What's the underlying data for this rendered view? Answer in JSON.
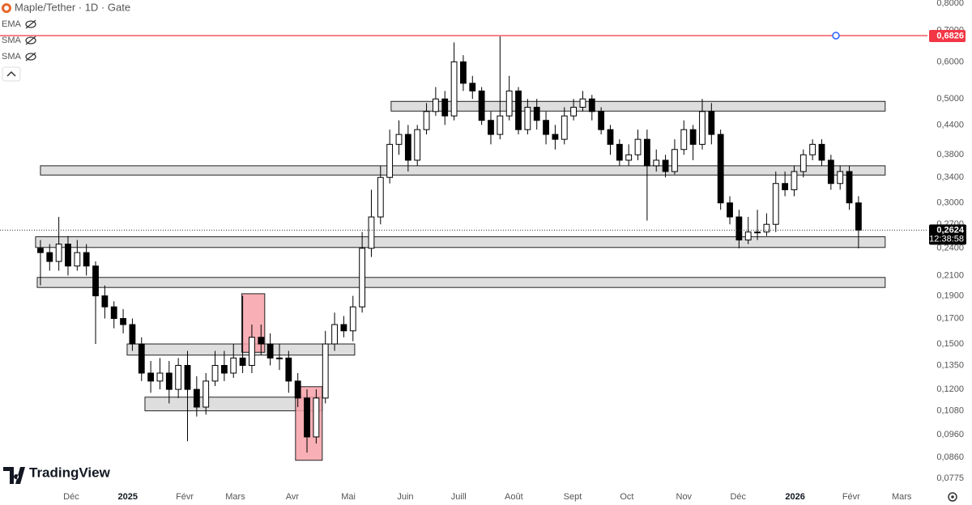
{
  "chart_data": {
    "type": "candlestick",
    "title": "Maple/Tether · 1D · Gate",
    "indicators": [
      "EMA",
      "SMA",
      "SMA"
    ],
    "open": [
      0.24,
      0.235,
      0.225,
      0.245,
      0.22,
      0.235,
      0.22,
      0.19,
      0.18,
      0.17,
      0.165,
      0.15,
      0.13,
      0.125,
      0.13,
      0.12,
      0.135,
      0.12,
      0.11,
      0.125,
      0.135,
      0.13,
      0.14,
      0.135,
      0.155,
      0.15,
      0.14,
      0.14,
      0.125,
      0.115,
      0.095,
      0.115,
      0.15,
      0.165,
      0.16,
      0.18,
      0.24,
      0.28,
      0.34,
      0.4,
      0.42,
      0.37,
      0.43,
      0.47,
      0.5,
      0.46,
      0.6,
      0.54,
      0.52,
      0.45,
      0.42,
      0.46,
      0.52,
      0.43,
      0.48,
      0.45,
      0.42,
      0.41,
      0.46,
      0.48,
      0.5,
      0.47,
      0.43,
      0.4,
      0.37,
      0.38,
      0.41,
      0.36,
      0.37,
      0.35,
      0.39,
      0.43,
      0.4,
      0.47,
      0.42,
      0.3,
      0.28,
      0.25,
      0.26,
      0.26,
      0.27,
      0.33,
      0.32,
      0.35,
      0.38,
      0.4,
      0.37,
      0.33,
      0.35,
      0.3
    ],
    "high": [
      0.25,
      0.245,
      0.28,
      0.255,
      0.25,
      0.245,
      0.225,
      0.2,
      0.185,
      0.178,
      0.17,
      0.155,
      0.138,
      0.14,
      0.138,
      0.14,
      0.145,
      0.128,
      0.13,
      0.145,
      0.145,
      0.15,
      0.19,
      0.165,
      0.165,
      0.158,
      0.15,
      0.145,
      0.13,
      0.12,
      0.12,
      0.16,
      0.175,
      0.172,
      0.19,
      0.26,
      0.32,
      0.36,
      0.43,
      0.45,
      0.44,
      0.44,
      0.49,
      0.53,
      0.52,
      0.66,
      0.62,
      0.56,
      0.53,
      0.47,
      0.68,
      0.56,
      0.53,
      0.5,
      0.5,
      0.47,
      0.44,
      0.48,
      0.5,
      0.52,
      0.51,
      0.48,
      0.44,
      0.41,
      0.4,
      0.43,
      0.43,
      0.39,
      0.38,
      0.41,
      0.45,
      0.44,
      0.5,
      0.49,
      0.43,
      0.31,
      0.29,
      0.28,
      0.29,
      0.285,
      0.35,
      0.35,
      0.36,
      0.39,
      0.41,
      0.41,
      0.38,
      0.36,
      0.36,
      0.31
    ],
    "low": [
      0.2,
      0.215,
      0.215,
      0.21,
      0.215,
      0.21,
      0.15,
      0.17,
      0.162,
      0.158,
      0.145,
      0.125,
      0.118,
      0.12,
      0.112,
      0.115,
      0.093,
      0.105,
      0.106,
      0.122,
      0.125,
      0.127,
      0.13,
      0.13,
      0.142,
      0.135,
      0.132,
      0.118,
      0.11,
      0.088,
      0.092,
      0.112,
      0.145,
      0.155,
      0.152,
      0.175,
      0.23,
      0.27,
      0.33,
      0.38,
      0.35,
      0.36,
      0.42,
      0.46,
      0.44,
      0.45,
      0.52,
      0.5,
      0.44,
      0.4,
      0.41,
      0.45,
      0.42,
      0.42,
      0.43,
      0.4,
      0.39,
      0.4,
      0.45,
      0.47,
      0.45,
      0.42,
      0.38,
      0.36,
      0.36,
      0.37,
      0.275,
      0.35,
      0.34,
      0.345,
      0.38,
      0.37,
      0.39,
      0.4,
      0.29,
      0.27,
      0.24,
      0.245,
      0.25,
      0.255,
      0.26,
      0.31,
      0.31,
      0.34,
      0.37,
      0.36,
      0.32,
      0.32,
      0.29,
      0.24
    ],
    "close": [
      0.235,
      0.225,
      0.245,
      0.22,
      0.235,
      0.22,
      0.19,
      0.18,
      0.17,
      0.165,
      0.15,
      0.13,
      0.125,
      0.13,
      0.12,
      0.135,
      0.12,
      0.11,
      0.125,
      0.135,
      0.13,
      0.14,
      0.135,
      0.155,
      0.15,
      0.14,
      0.14,
      0.125,
      0.115,
      0.095,
      0.115,
      0.15,
      0.165,
      0.16,
      0.18,
      0.24,
      0.28,
      0.34,
      0.4,
      0.42,
      0.37,
      0.43,
      0.47,
      0.5,
      0.46,
      0.6,
      0.54,
      0.52,
      0.45,
      0.42,
      0.46,
      0.52,
      0.43,
      0.48,
      0.45,
      0.42,
      0.41,
      0.46,
      0.48,
      0.5,
      0.47,
      0.43,
      0.4,
      0.37,
      0.38,
      0.41,
      0.36,
      0.37,
      0.35,
      0.39,
      0.43,
      0.4,
      0.47,
      0.42,
      0.3,
      0.28,
      0.25,
      0.26,
      0.26,
      0.27,
      0.33,
      0.32,
      0.35,
      0.38,
      0.4,
      0.37,
      0.33,
      0.35,
      0.3,
      0.2624
    ],
    "up_color": "#ffffff",
    "down_color": "#000000",
    "log_scale": true,
    "ylim": [
      0.0748,
      0.813
    ],
    "yticks": [
      {
        "value": 0.8,
        "label": "0,8000"
      },
      {
        "value": 0.7,
        "label": "0,7000"
      },
      {
        "value": 0.6,
        "label": "0,6000"
      },
      {
        "value": 0.5,
        "label": "0,5000"
      },
      {
        "value": 0.44,
        "label": "0,4400"
      },
      {
        "value": 0.38,
        "label": "0,3800"
      },
      {
        "value": 0.34,
        "label": "0,3400"
      },
      {
        "value": 0.3,
        "label": "0,3000"
      },
      {
        "value": 0.27,
        "label": "0,2700"
      },
      {
        "value": 0.24,
        "label": "0,2400"
      },
      {
        "value": 0.21,
        "label": "0,2100"
      },
      {
        "value": 0.19,
        "label": "0,1900"
      },
      {
        "value": 0.17,
        "label": "0,1700"
      },
      {
        "value": 0.15,
        "label": "0,1500"
      },
      {
        "value": 0.135,
        "label": "0,1350"
      },
      {
        "value": 0.12,
        "label": "0,1200"
      },
      {
        "value": 0.108,
        "label": "0,1080"
      },
      {
        "value": 0.096,
        "label": "0,0960"
      },
      {
        "value": 0.086,
        "label": "0,0860"
      },
      {
        "value": 0.0775,
        "label": "0,0775"
      }
    ],
    "xlim": [
      -4.4,
      96.5
    ],
    "xticks": [
      {
        "value": 3.35,
        "label": "Déc"
      },
      {
        "value": 9.5,
        "label": "2025"
      },
      {
        "value": 15.7,
        "label": "Févr"
      },
      {
        "value": 21.2,
        "label": "Mars"
      },
      {
        "value": 27.4,
        "label": "Avr"
      },
      {
        "value": 33.5,
        "label": "Mai"
      },
      {
        "value": 39.7,
        "label": "Juin"
      },
      {
        "value": 45.5,
        "label": "Juill"
      },
      {
        "value": 51.5,
        "label": "Août"
      },
      {
        "value": 57.9,
        "label": "Sept"
      },
      {
        "value": 63.8,
        "label": "Oct"
      },
      {
        "value": 70,
        "label": "Nov"
      },
      {
        "value": 75.9,
        "label": "Déc"
      },
      {
        "value": 82.1,
        "label": "2026"
      },
      {
        "value": 88.2,
        "label": "Févr"
      },
      {
        "value": 93.7,
        "label": "Mars"
      }
    ],
    "zones": [
      {
        "start": 38.15,
        "end": 91.9,
        "top": 0.494,
        "bottom": 0.471
      },
      {
        "start": 0,
        "end": 91.9,
        "top": 0.36,
        "bottom": 0.344
      },
      {
        "start": -0.53,
        "end": 91.9,
        "top": 0.254,
        "bottom": 0.241
      },
      {
        "start": -0.35,
        "end": 91.9,
        "top": 0.208,
        "bottom": 0.198
      },
      {
        "start": 9.43,
        "end": 34.19,
        "top": 0.15,
        "bottom": 0.142
      },
      {
        "start": 11.37,
        "end": 30.66,
        "top": 0.1155,
        "bottom": 0.108
      }
    ],
    "highlights": [
      {
        "start": 21.9,
        "end": 24.4,
        "top": 0.192,
        "bottom": 0.144
      },
      {
        "start": 27.75,
        "end": 30.66,
        "top": 0.1216,
        "bottom": 0.0847
      }
    ],
    "highlight_color": "#f7a1a8",
    "zone_color": "#d6d6d6",
    "price_line": {
      "value": 0.6826,
      "label": "0,6826",
      "color": "#f23645"
    },
    "last_price": {
      "value": 0.2624,
      "label": "0,2624",
      "countdown": "12:38:58"
    }
  },
  "branding": "TradingView"
}
